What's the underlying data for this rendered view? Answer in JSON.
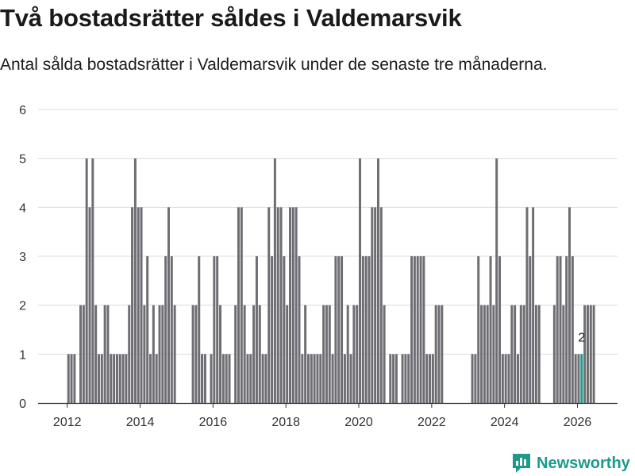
{
  "title": "Två bostadsrätter såldes i Valdemarsvik",
  "subtitle": "Antal sålda bostadsrätter i Valdemarsvik under de senaste tre månaderna.",
  "brand": {
    "name": "Newsworthy",
    "logo_icon": "bar-chart-logo-icon"
  },
  "colors": {
    "bar": "#6e6d73",
    "highlight": "#1d9a8a",
    "grid": "#dcdcdc",
    "axis": "#333333"
  },
  "chart_data": {
    "type": "bar",
    "title": "Två bostadsrätter såldes i Valdemarsvik",
    "xlabel": "",
    "ylabel": "",
    "ylim": [
      0,
      6
    ],
    "yticks": [
      "0",
      "1",
      "2",
      "3",
      "4",
      "5",
      "6"
    ],
    "xticks": [
      "2012",
      "2014",
      "2016",
      "2018",
      "2020",
      "2022",
      "2024",
      "2026"
    ],
    "xtick_values": [
      2012,
      2014,
      2016,
      2018,
      2020,
      2022,
      2024,
      2026
    ],
    "xlim": [
      2011.2,
      2027.1
    ],
    "grid": true,
    "start": 2012.0,
    "step_years": 0.083333,
    "bar_width_years": 0.065,
    "values": [
      1,
      1,
      1,
      0,
      2,
      2,
      5,
      4,
      5,
      2,
      1,
      1,
      2,
      2,
      1,
      1,
      1,
      1,
      1,
      1,
      2,
      4,
      5,
      4,
      4,
      2,
      3,
      1,
      2,
      1,
      2,
      2,
      3,
      4,
      3,
      2,
      0,
      0,
      0,
      0,
      0,
      2,
      2,
      3,
      1,
      1,
      0,
      1,
      3,
      3,
      2,
      1,
      1,
      1,
      0,
      2,
      4,
      4,
      2,
      1,
      1,
      2,
      3,
      2,
      1,
      1,
      4,
      3,
      5,
      4,
      4,
      3,
      2,
      4,
      4,
      4,
      3,
      1,
      2,
      1,
      1,
      1,
      1,
      1,
      2,
      2,
      2,
      1,
      3,
      3,
      3,
      1,
      2,
      1,
      2,
      2,
      5,
      3,
      3,
      3,
      4,
      4,
      5,
      4,
      2,
      0,
      1,
      1,
      1,
      0,
      1,
      1,
      1,
      3,
      3,
      3,
      3,
      3,
      1,
      1,
      1,
      2,
      2,
      2,
      0,
      0,
      0,
      0,
      0,
      0,
      0,
      0,
      0,
      1,
      1,
      3,
      2,
      2,
      2,
      3,
      2,
      5,
      3,
      1,
      1,
      1,
      2,
      2,
      1,
      2,
      2,
      4,
      3,
      4,
      2,
      2,
      0,
      0,
      0,
      0,
      2,
      3,
      3,
      2,
      3,
      4,
      3,
      1,
      1,
      1,
      2,
      2,
      2,
      2
    ],
    "highlight_index": 169,
    "highlight_label": "2"
  }
}
